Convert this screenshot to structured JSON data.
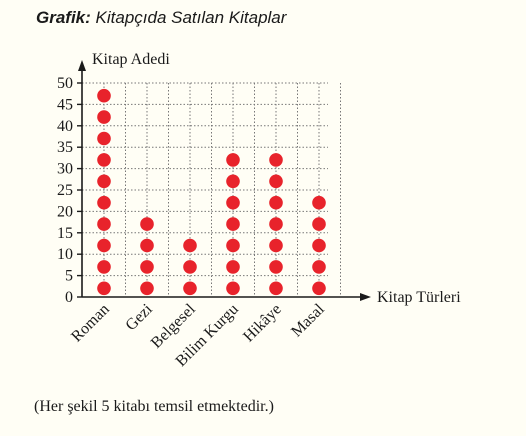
{
  "title_label": "Grafik:",
  "title_text": "Kitapçıda Satılan Kitaplar",
  "caption": "(Her şekil 5 kitabı temsil etmektedir.)",
  "colors": {
    "dot": "#e8232b",
    "grid": "#777777",
    "axis": "#1a1a1a"
  },
  "chart_data": {
    "type": "scatter",
    "subtype": "pictograph",
    "title": "Kitapçıda Satılan Kitaplar",
    "ylabel": "Kitap Adedi",
    "xlabel": "Kitap Türleri",
    "categories": [
      "Roman",
      "Gezi",
      "Belgesel",
      "Bilim Kurgu",
      "Hikâye",
      "Masal"
    ],
    "values": [
      50,
      20,
      15,
      35,
      35,
      25
    ],
    "unit_per_symbol": 5,
    "ylim": [
      0,
      50
    ],
    "yticks": [
      0,
      5,
      10,
      15,
      20,
      25,
      30,
      35,
      40,
      45,
      50
    ],
    "grid": true
  }
}
